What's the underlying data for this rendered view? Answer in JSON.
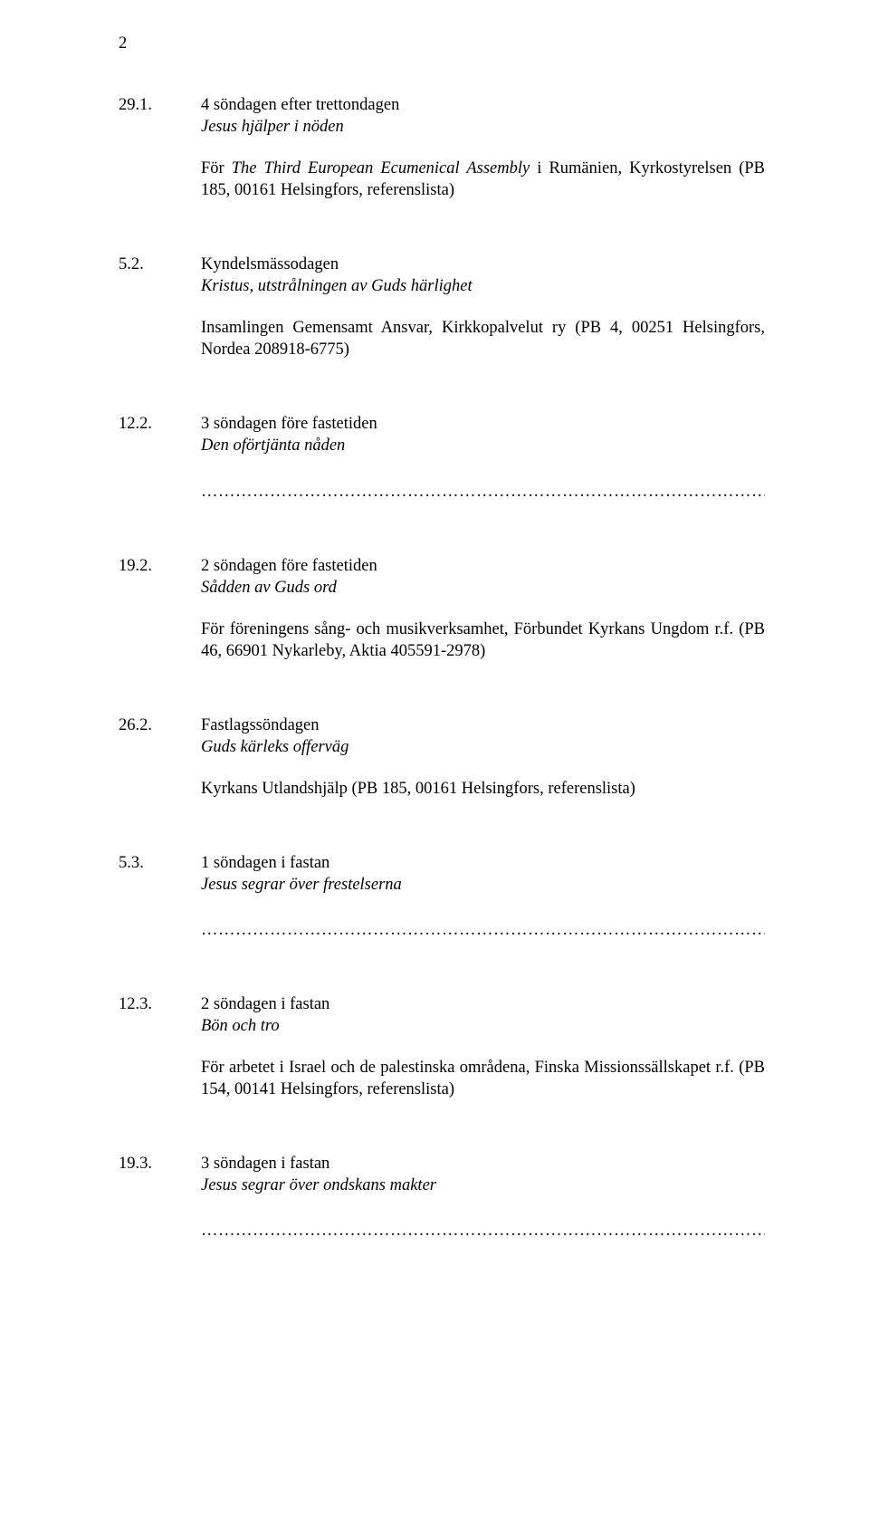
{
  "page_number": "2",
  "dotted_line": "………………………………………………………………………………………",
  "entries": [
    {
      "date": "29.1.",
      "title": "4 söndagen efter trettondagen",
      "subtitle": "Jesus hjälper i nöden",
      "body_plain_prefix": "För ",
      "body_italic": "The Third European Ecumenical Assembly",
      "body_plain_suffix": " i Rumänien, Kyrkostyrelsen (PB 185, 00161 Helsingfors, referenslista)",
      "has_dotted": false
    },
    {
      "date": "5.2.",
      "title": "Kyndelsmässodagen",
      "subtitle": "Kristus, utstrålningen av Guds härlighet",
      "body_plain_prefix": "Insamlingen Gemensamt Ansvar, Kirkkopalvelut ry (PB 4, 00251 Helsingfors, Nordea 208918-6775)",
      "body_italic": "",
      "body_plain_suffix": "",
      "has_dotted": false
    },
    {
      "date": "12.2.",
      "title": "3 söndagen före fastetiden",
      "subtitle": "Den oförtjänta nåden",
      "body_plain_prefix": "",
      "body_italic": "",
      "body_plain_suffix": "",
      "has_dotted": true
    },
    {
      "date": "19.2.",
      "title": "2 söndagen före fastetiden",
      "subtitle": "Sådden av Guds ord",
      "body_plain_prefix": "För föreningens sång- och musikverksamhet, Förbundet Kyrkans Ungdom r.f. (PB 46, 66901 Nykarleby, Aktia 405591-2978)",
      "body_italic": "",
      "body_plain_suffix": "",
      "has_dotted": false
    },
    {
      "date": "26.2.",
      "title": "Fastlagssöndagen",
      "subtitle": "Guds kärleks offerväg",
      "body_plain_prefix": "Kyrkans Utlandshjälp (PB 185, 00161 Helsingfors, referenslista)",
      "body_italic": "",
      "body_plain_suffix": "",
      "has_dotted": false
    },
    {
      "date": "5.3.",
      "title": "1 söndagen i fastan",
      "subtitle": "Jesus segrar över frestelserna",
      "body_plain_prefix": "",
      "body_italic": "",
      "body_plain_suffix": "",
      "has_dotted": true
    },
    {
      "date": "12.3.",
      "title": "2 söndagen i fastan",
      "subtitle": "Bön och tro",
      "body_plain_prefix": "För arbetet i Israel och de palestinska områdena, Finska Missionssällskapet r.f. (PB 154, 00141 Helsingfors, referenslista)",
      "body_italic": "",
      "body_plain_suffix": "",
      "has_dotted": false
    },
    {
      "date": "19.3.",
      "title": "3 söndagen i fastan",
      "subtitle": "Jesus segrar över ondskans makter",
      "body_plain_prefix": "",
      "body_italic": "",
      "body_plain_suffix": "",
      "has_dotted": true
    }
  ]
}
